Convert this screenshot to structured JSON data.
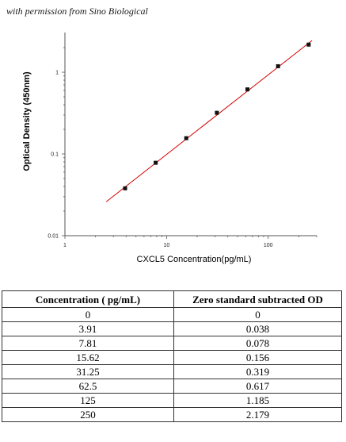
{
  "header": {
    "permission": "with permission from Sino Biological"
  },
  "chart_data": {
    "type": "scatter",
    "x_scale": "log",
    "y_scale": "log",
    "xlim": [
      1,
      300
    ],
    "ylim": [
      0.01,
      2.8
    ],
    "x_ticks": [
      {
        "value": 1,
        "label": "1"
      },
      {
        "value": 10,
        "label": "10"
      },
      {
        "value": 100,
        "label": "100"
      }
    ],
    "y_ticks": [
      {
        "value": 0.01,
        "label": "0.01"
      },
      {
        "value": 0.1,
        "label": "0.1"
      },
      {
        "value": 1,
        "label": "1"
      }
    ],
    "xlabel": "CXCL5  Concentration(pg/mL)",
    "ylabel": "Optical Density (450nm)",
    "points": [
      {
        "x": 3.91,
        "y": 0.038
      },
      {
        "x": 7.81,
        "y": 0.078
      },
      {
        "x": 15.62,
        "y": 0.156
      },
      {
        "x": 31.25,
        "y": 0.319
      },
      {
        "x": 62.5,
        "y": 0.617
      },
      {
        "x": 125,
        "y": 1.185
      },
      {
        "x": 250,
        "y": 2.179
      }
    ],
    "fit_line": {
      "from": {
        "x": 2.55,
        "y": 0.026
      },
      "to": {
        "x": 270,
        "y": 2.45
      },
      "color": "#d40000"
    },
    "marker_color": "#111111",
    "grid": false
  },
  "table": {
    "headers": [
      "Concentration ( pg/mL)",
      "Zero standard subtracted OD"
    ],
    "rows": [
      [
        "0",
        "0"
      ],
      [
        "3.91",
        "0.038"
      ],
      [
        "7.81",
        "0.078"
      ],
      [
        "15.62",
        "0.156"
      ],
      [
        "31.25",
        "0.319"
      ],
      [
        "62.5",
        "0.617"
      ],
      [
        "125",
        "1.185"
      ],
      [
        "250",
        "2.179"
      ]
    ]
  }
}
